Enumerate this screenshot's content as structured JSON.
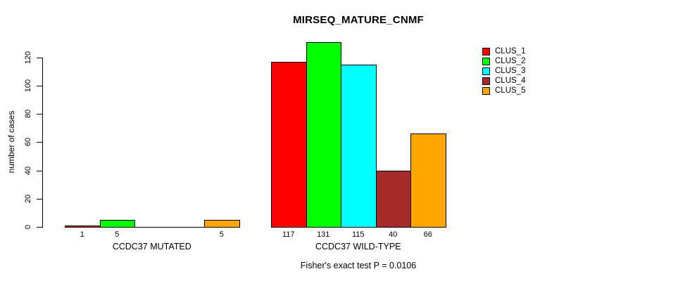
{
  "title": "MIRSEQ_MATURE_CNMF",
  "chart_data": {
    "type": "bar",
    "title": "MIRSEQ_MATURE_CNMF",
    "ylabel": "number of cases",
    "xlabel": "",
    "ylim": [
      0,
      131
    ],
    "yticks": [
      0,
      20,
      40,
      60,
      80,
      100,
      120
    ],
    "grid": false,
    "legend_position": "top-right",
    "categories": [
      "CCDC37 MUTATED",
      "CCDC37 WILD-TYPE"
    ],
    "series": [
      {
        "name": "CLUS_1",
        "color": "#ff0000",
        "values": [
          1,
          117
        ]
      },
      {
        "name": "CLUS_2",
        "color": "#00ff00",
        "values": [
          5,
          131
        ]
      },
      {
        "name": "CLUS_3",
        "color": "#00ffff",
        "values": [
          0,
          115
        ]
      },
      {
        "name": "CLUS_4",
        "color": "#a52a2a",
        "values": [
          0,
          40
        ]
      },
      {
        "name": "CLUS_5",
        "color": "#ffa500",
        "values": [
          5,
          66
        ]
      }
    ],
    "bar_label_rule": "value shown under each drawn bar; zero-value bars are omitted",
    "footnote": "Fisher's exact test P = 0.0106"
  }
}
